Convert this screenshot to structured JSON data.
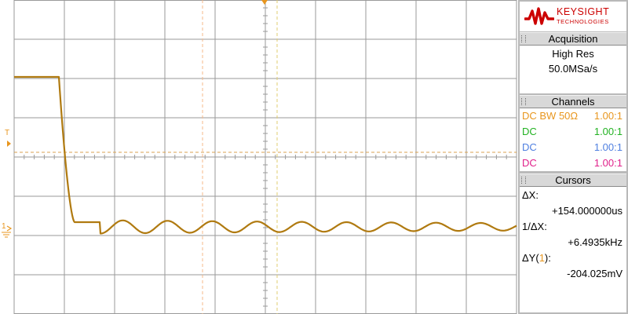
{
  "brand": {
    "name": "KEYSIGHT",
    "subtitle": "TECHNOLOGIES",
    "color": "#cc0000"
  },
  "markers": {
    "trigger_level_label": "T",
    "channel1_ground_label": "1"
  },
  "acquisition": {
    "title": "Acquisition",
    "mode": "High Res",
    "sample_rate": "50.0MSa/s"
  },
  "channels": {
    "title": "Channels",
    "items": [
      {
        "coupling": "DC BW 50Ω",
        "probe": "1.00:1",
        "color": "#e8961e"
      },
      {
        "coupling": "DC",
        "probe": "1.00:1",
        "color": "#22b222"
      },
      {
        "coupling": "DC",
        "probe": "1.00:1",
        "color": "#4f7fe0"
      },
      {
        "coupling": "DC",
        "probe": "1.00:1",
        "color": "#e0208a"
      }
    ]
  },
  "cursors": {
    "title": "Cursors",
    "delta_x_label": "ΔX:",
    "delta_x_value": "+154.000000us",
    "inv_delta_x_label": "1/ΔX:",
    "inv_delta_x_value": "+6.4935kHz",
    "delta_y_label_prefix": "ΔY(",
    "delta_y_channel": "1",
    "delta_y_label_suffix": "):",
    "delta_y_value": "-204.025mV"
  },
  "colors": {
    "trace": "#b07a10",
    "cursor_x": "#f5b888",
    "cursor_x2": "#e0cc70",
    "trigger_line": "#d9a050",
    "grid": "#9a9a9a",
    "channel1": "#e8961e"
  }
}
